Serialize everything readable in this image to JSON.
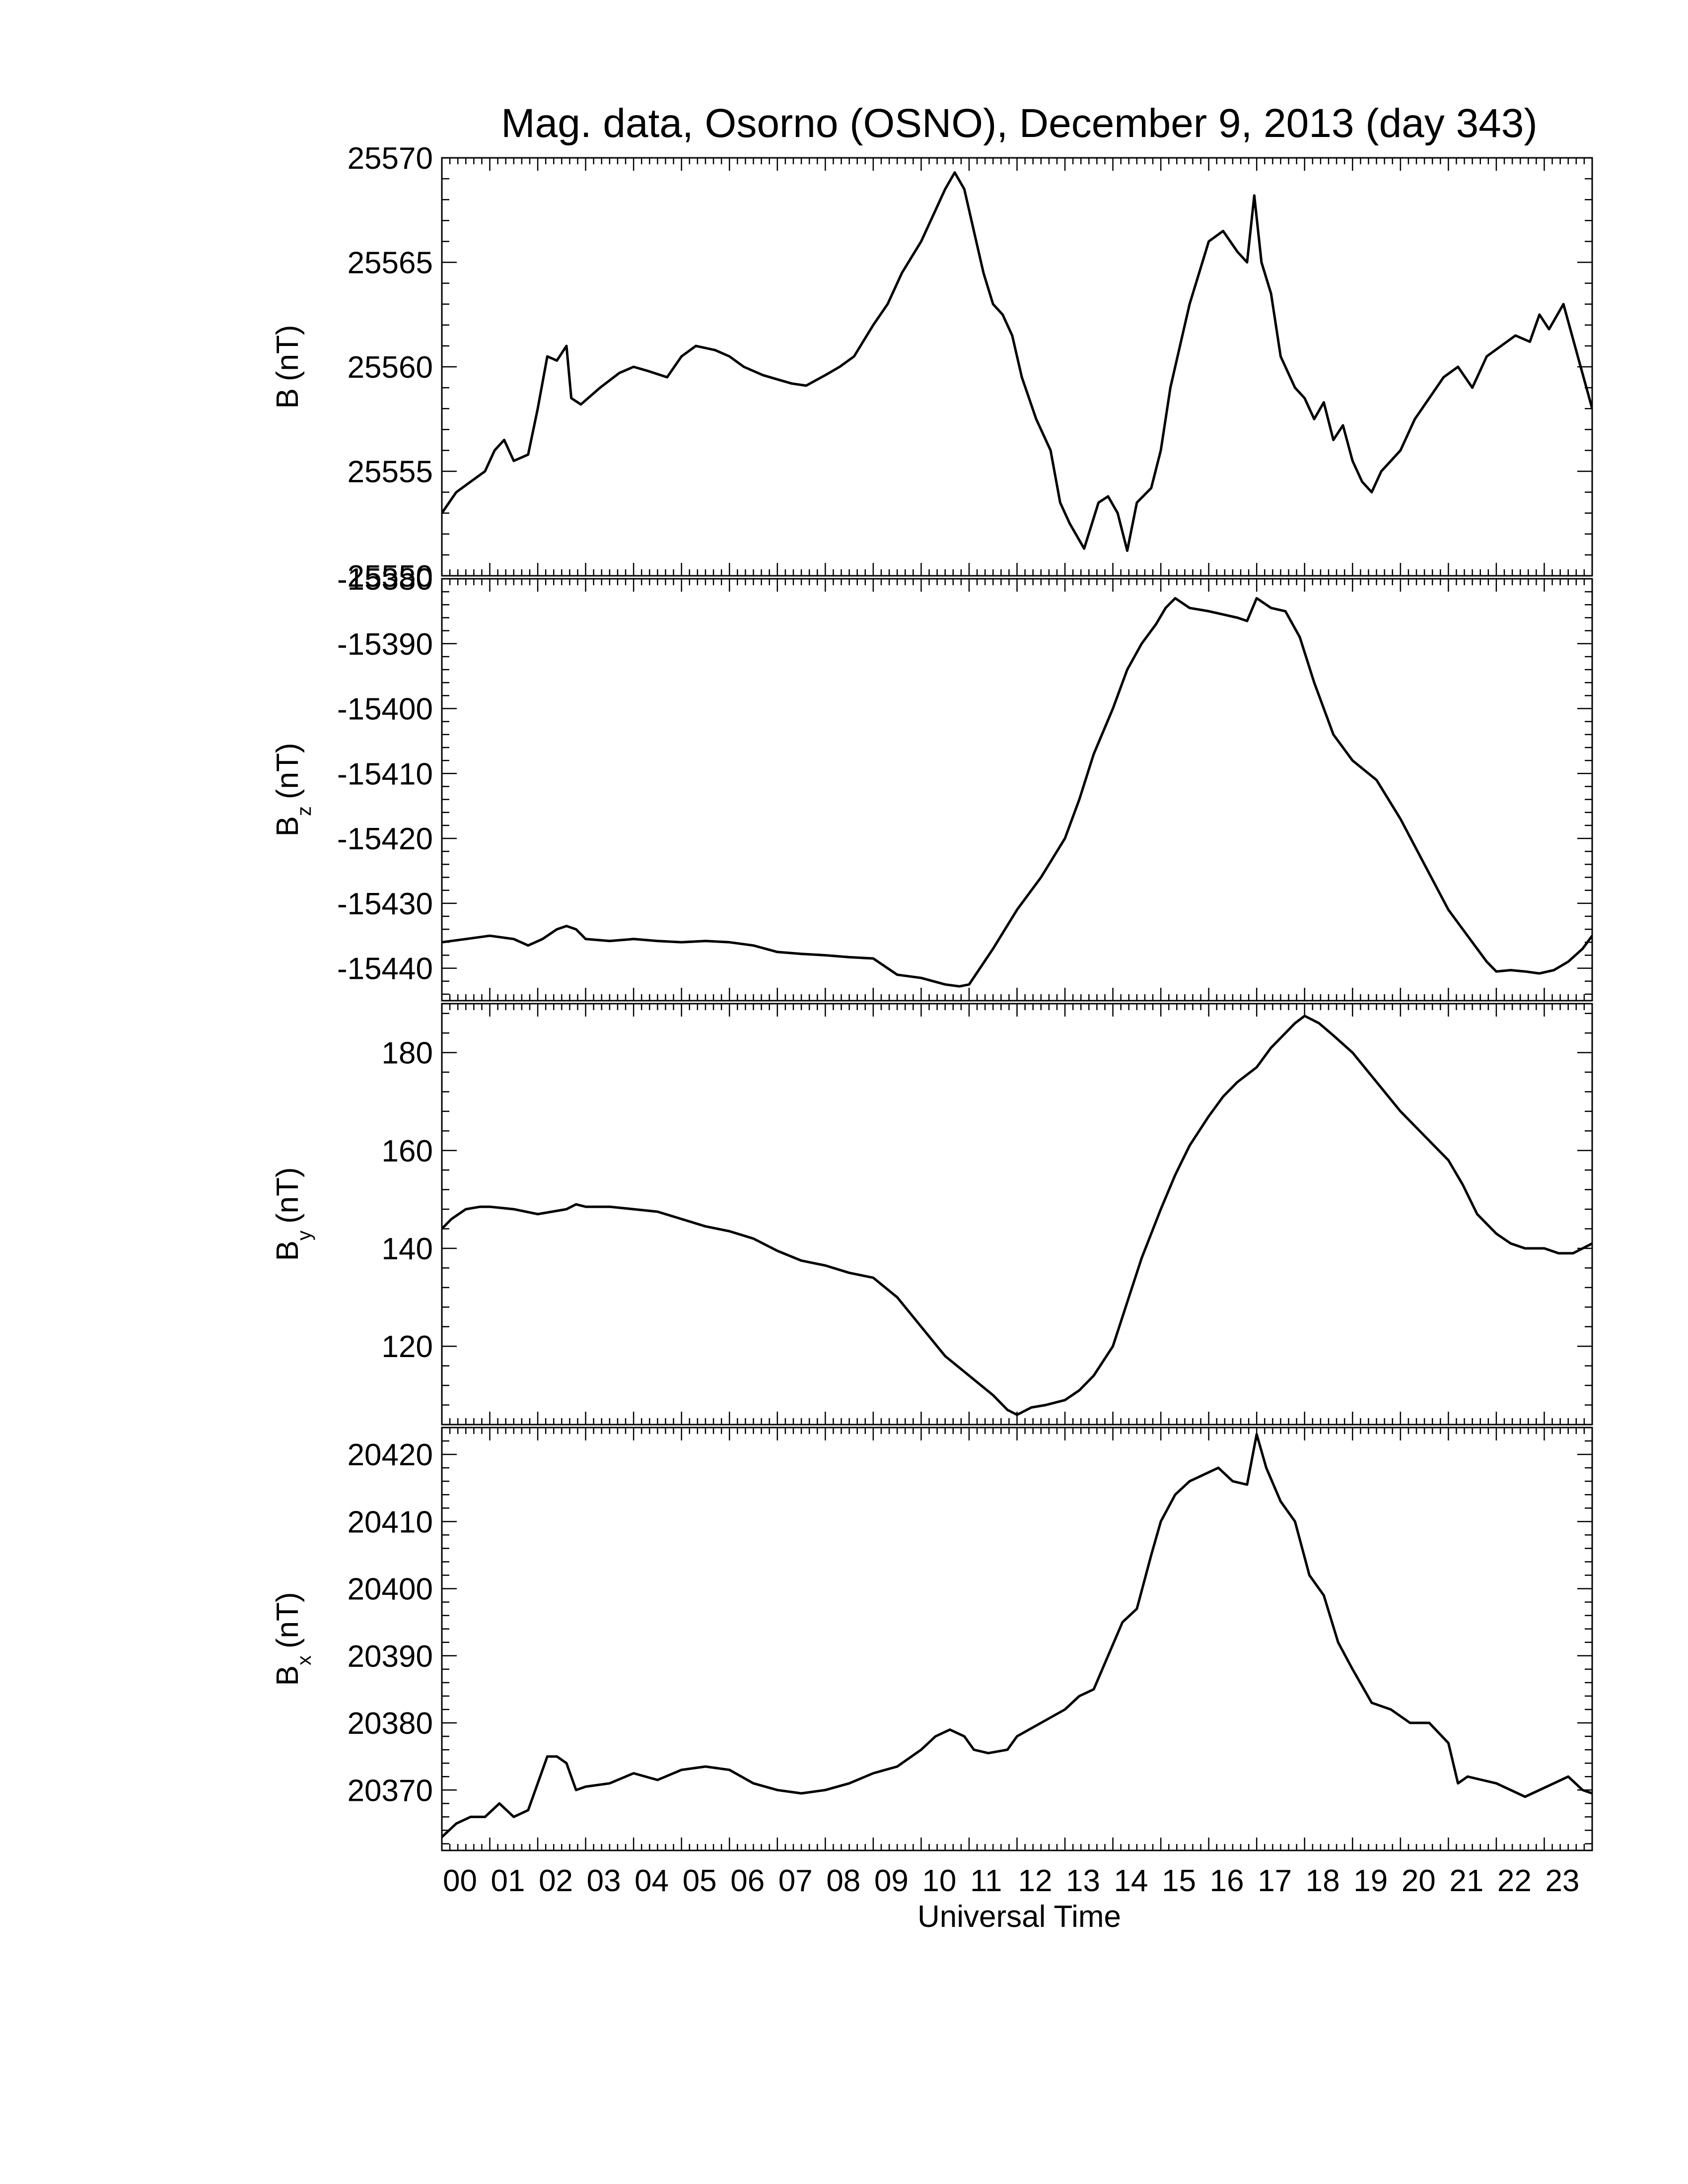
{
  "figure": {
    "title": "Mag. data, Osorno (OSNO), December 9, 2013 (day 343)",
    "xlabel": "Universal Time",
    "x_tick_labels": [
      "00",
      "01",
      "02",
      "03",
      "04",
      "05",
      "06",
      "07",
      "08",
      "09",
      "10",
      "11",
      "12",
      "13",
      "14",
      "15",
      "16",
      "17",
      "18",
      "19",
      "20",
      "21",
      "22",
      "23"
    ],
    "line_color": "#000000"
  },
  "chart_data": [
    {
      "type": "line",
      "ylabel_main": "B",
      "ylabel_sub": "",
      "ylabel_unit": "(nT)",
      "ylim": [
        25550,
        25570
      ],
      "yticks": [
        25550,
        25555,
        25560,
        25565,
        25570
      ],
      "xlim": [
        0,
        24
      ],
      "series": [
        {
          "x": [
            0,
            0.3,
            0.6,
            0.9,
            1.1,
            1.3,
            1.5,
            1.8,
            2.0,
            2.2,
            2.4,
            2.6,
            2.7,
            2.9,
            3.3,
            3.7,
            4.0,
            4.3,
            4.7,
            5.0,
            5.3,
            5.7,
            6.0,
            6.3,
            6.7,
            7.0,
            7.3,
            7.6,
            8.0,
            8.3,
            8.6,
            9.0,
            9.3,
            9.6,
            10.0,
            10.3,
            10.5,
            10.7,
            10.9,
            11.1,
            11.3,
            11.5,
            11.7,
            11.9,
            12.1,
            12.4,
            12.7,
            12.9,
            13.1,
            13.4,
            13.7,
            13.9,
            14.1,
            14.3,
            14.5,
            14.8,
            15.0,
            15.2,
            15.4,
            15.6,
            15.8,
            16.0,
            16.3,
            16.6,
            16.8,
            16.95,
            17.1,
            17.3,
            17.5,
            17.8,
            18.0,
            18.2,
            18.4,
            18.6,
            18.8,
            19.0,
            19.2,
            19.4,
            19.6,
            19.8,
            20.0,
            20.3,
            20.6,
            20.9,
            21.2,
            21.5,
            21.8,
            22.1,
            22.4,
            22.7,
            22.9,
            23.1,
            23.4,
            23.7,
            24.0
          ],
          "y": [
            25553,
            25554,
            25554.5,
            25555,
            25556,
            25556.5,
            25555.5,
            25555.8,
            25558,
            25560.5,
            25560.3,
            25561,
            25558.5,
            25558.2,
            25559,
            25559.7,
            25560,
            25559.8,
            25559.5,
            25560.5,
            25561,
            25560.8,
            25560.5,
            25560,
            25559.6,
            25559.4,
            25559.2,
            25559.1,
            25559.6,
            25560,
            25560.5,
            25562,
            25563,
            25564.5,
            25566,
            25567.5,
            25568.5,
            25569.3,
            25568.5,
            25566.5,
            25564.5,
            25563,
            25562.5,
            25561.5,
            25559.5,
            25557.5,
            25556,
            25553.5,
            25552.5,
            25551.3,
            25553.5,
            25553.8,
            25553,
            25551.2,
            25553.5,
            25554.2,
            25556,
            25559,
            25561,
            25563,
            25564.5,
            25566,
            25566.5,
            25565.5,
            25565,
            25568.2,
            25565,
            25563.5,
            25560.5,
            25559,
            25558.5,
            25557.5,
            25558.3,
            25556.5,
            25557.2,
            25555.5,
            25554.5,
            25554,
            25555,
            25555.5,
            25556,
            25557.5,
            25558.5,
            25559.5,
            25560,
            25559,
            25560.5,
            25561,
            25561.5,
            25561.2,
            25562.5,
            25561.8,
            25563,
            25560.5,
            25558
          ]
        }
      ]
    },
    {
      "type": "line",
      "ylabel_main": "B",
      "ylabel_sub": "z",
      "ylabel_unit": "(nT)",
      "ylim": [
        -15445,
        -15380
      ],
      "yticks": [
        -15380,
        -15390,
        -15400,
        -15410,
        -15420,
        -15430,
        -15440
      ],
      "xlim": [
        0,
        24
      ],
      "series": [
        {
          "x": [
            0,
            0.5,
            1.0,
            1.5,
            1.8,
            2.1,
            2.4,
            2.6,
            2.8,
            3.0,
            3.5,
            4.0,
            4.5,
            5.0,
            5.5,
            6.0,
            6.5,
            7.0,
            7.5,
            8.0,
            8.5,
            9.0,
            9.5,
            10.0,
            10.5,
            10.8,
            11.0,
            11.5,
            12.0,
            12.5,
            13.0,
            13.3,
            13.6,
            14.0,
            14.3,
            14.6,
            14.9,
            15.1,
            15.3,
            15.6,
            16.0,
            16.3,
            16.6,
            16.8,
            17.0,
            17.3,
            17.6,
            17.9,
            18.2,
            18.6,
            19.0,
            19.5,
            20.0,
            20.5,
            21.0,
            21.5,
            21.8,
            22.0,
            22.3,
            22.6,
            22.9,
            23.2,
            23.5,
            23.8,
            24.0
          ],
          "y": [
            -15436,
            -15435.5,
            -15435,
            -15435.5,
            -15436.5,
            -15435.5,
            -15434,
            -15433.5,
            -15434,
            -15435.5,
            -15435.8,
            -15435.5,
            -15435.8,
            -15436,
            -15435.8,
            -15436,
            -15436.5,
            -15437.5,
            -15437.8,
            -15438,
            -15438.3,
            -15438.5,
            -15441,
            -15441.5,
            -15442.5,
            -15442.8,
            -15442.5,
            -15437,
            -15431,
            -15426,
            -15420,
            -15414,
            -15407,
            -15400,
            -15394,
            -15390,
            -15387,
            -15384.5,
            -15383,
            -15384.5,
            -15385,
            -15385.5,
            -15386,
            -15386.5,
            -15383,
            -15384.5,
            -15385,
            -15389,
            -15396,
            -15404,
            -15408,
            -15411,
            -15417,
            -15424,
            -15431,
            -15436,
            -15439,
            -15440.5,
            -15440.3,
            -15440.5,
            -15440.8,
            -15440.3,
            -15439,
            -15437,
            -15435
          ]
        }
      ]
    },
    {
      "type": "line",
      "ylabel_main": "B",
      "ylabel_sub": "y",
      "ylabel_unit": "(nT)",
      "ylim": [
        104,
        190
      ],
      "yticks": [
        120,
        140,
        160,
        180
      ],
      "xlim": [
        0,
        24
      ],
      "series": [
        {
          "x": [
            0,
            0.2,
            0.5,
            0.8,
            1.0,
            1.5,
            2.0,
            2.3,
            2.6,
            2.8,
            3.0,
            3.5,
            4.0,
            4.5,
            5.0,
            5.5,
            6.0,
            6.5,
            7.0,
            7.5,
            8.0,
            8.5,
            9.0,
            9.5,
            10.0,
            10.5,
            11.0,
            11.5,
            11.8,
            12.0,
            12.3,
            12.6,
            13.0,
            13.3,
            13.6,
            14.0,
            14.3,
            14.6,
            15.0,
            15.3,
            15.6,
            16.0,
            16.3,
            16.6,
            17.0,
            17.3,
            17.6,
            17.8,
            18.0,
            18.3,
            18.6,
            19.0,
            19.5,
            20.0,
            20.5,
            21.0,
            21.3,
            21.6,
            22.0,
            22.3,
            22.6,
            23.0,
            23.3,
            23.6,
            24.0
          ],
          "y": [
            144,
            146,
            148,
            148.5,
            148.5,
            148,
            147,
            147.5,
            148,
            149,
            148.5,
            148.5,
            148,
            147.5,
            146,
            144.5,
            143.5,
            142,
            139.5,
            137.5,
            136.5,
            135,
            134,
            130,
            124,
            118,
            114,
            110,
            107,
            106,
            107.5,
            108,
            109,
            111,
            114,
            120,
            129,
            138,
            148,
            155,
            161,
            167,
            171,
            174,
            177,
            181,
            184,
            186,
            187.5,
            186,
            183.5,
            180,
            174,
            168,
            163,
            158,
            153,
            147,
            143,
            141,
            140,
            140,
            139,
            139,
            141
          ]
        }
      ]
    },
    {
      "type": "line",
      "ylabel_main": "B",
      "ylabel_sub": "x",
      "ylabel_unit": "(nT)",
      "ylim": [
        20361,
        20424
      ],
      "yticks": [
        20370,
        20380,
        20390,
        20400,
        20410,
        20420
      ],
      "xlim": [
        0,
        24
      ],
      "series": [
        {
          "x": [
            0,
            0.3,
            0.6,
            0.9,
            1.2,
            1.5,
            1.8,
            2.0,
            2.2,
            2.4,
            2.6,
            2.8,
            3.0,
            3.5,
            4.0,
            4.5,
            5.0,
            5.5,
            6.0,
            6.5,
            7.0,
            7.5,
            8.0,
            8.5,
            9.0,
            9.5,
            10.0,
            10.3,
            10.6,
            10.9,
            11.1,
            11.4,
            11.8,
            12.0,
            12.5,
            13.0,
            13.3,
            13.6,
            13.9,
            14.2,
            14.5,
            14.8,
            15.0,
            15.3,
            15.6,
            15.9,
            16.2,
            16.5,
            16.8,
            17.0,
            17.2,
            17.5,
            17.8,
            18.1,
            18.4,
            18.7,
            19.0,
            19.4,
            19.8,
            20.2,
            20.6,
            21.0,
            21.2,
            21.4,
            21.7,
            22.0,
            22.3,
            22.6,
            22.9,
            23.2,
            23.5,
            23.8,
            24.0
          ],
          "y": [
            20363,
            20365,
            20366,
            20366,
            20368,
            20366,
            20367,
            20371,
            20375,
            20375,
            20374,
            20370,
            20370.5,
            20371,
            20372.5,
            20371.5,
            20373,
            20373.5,
            20373,
            20371,
            20370,
            20369.5,
            20370,
            20371,
            20372.5,
            20373.5,
            20376,
            20378,
            20379,
            20378,
            20376,
            20375.5,
            20376,
            20378,
            20380,
            20382,
            20384,
            20385,
            20390,
            20395,
            20397,
            20405,
            20410,
            20414,
            20416,
            20417,
            20418,
            20416,
            20415.5,
            20423,
            20418,
            20413,
            20410,
            20402,
            20399,
            20392,
            20388,
            20383,
            20382,
            20380,
            20380,
            20377,
            20371,
            20372,
            20371.5,
            20371,
            20370,
            20369,
            20370,
            20371,
            20372,
            20370,
            20369.5
          ]
        }
      ]
    }
  ]
}
